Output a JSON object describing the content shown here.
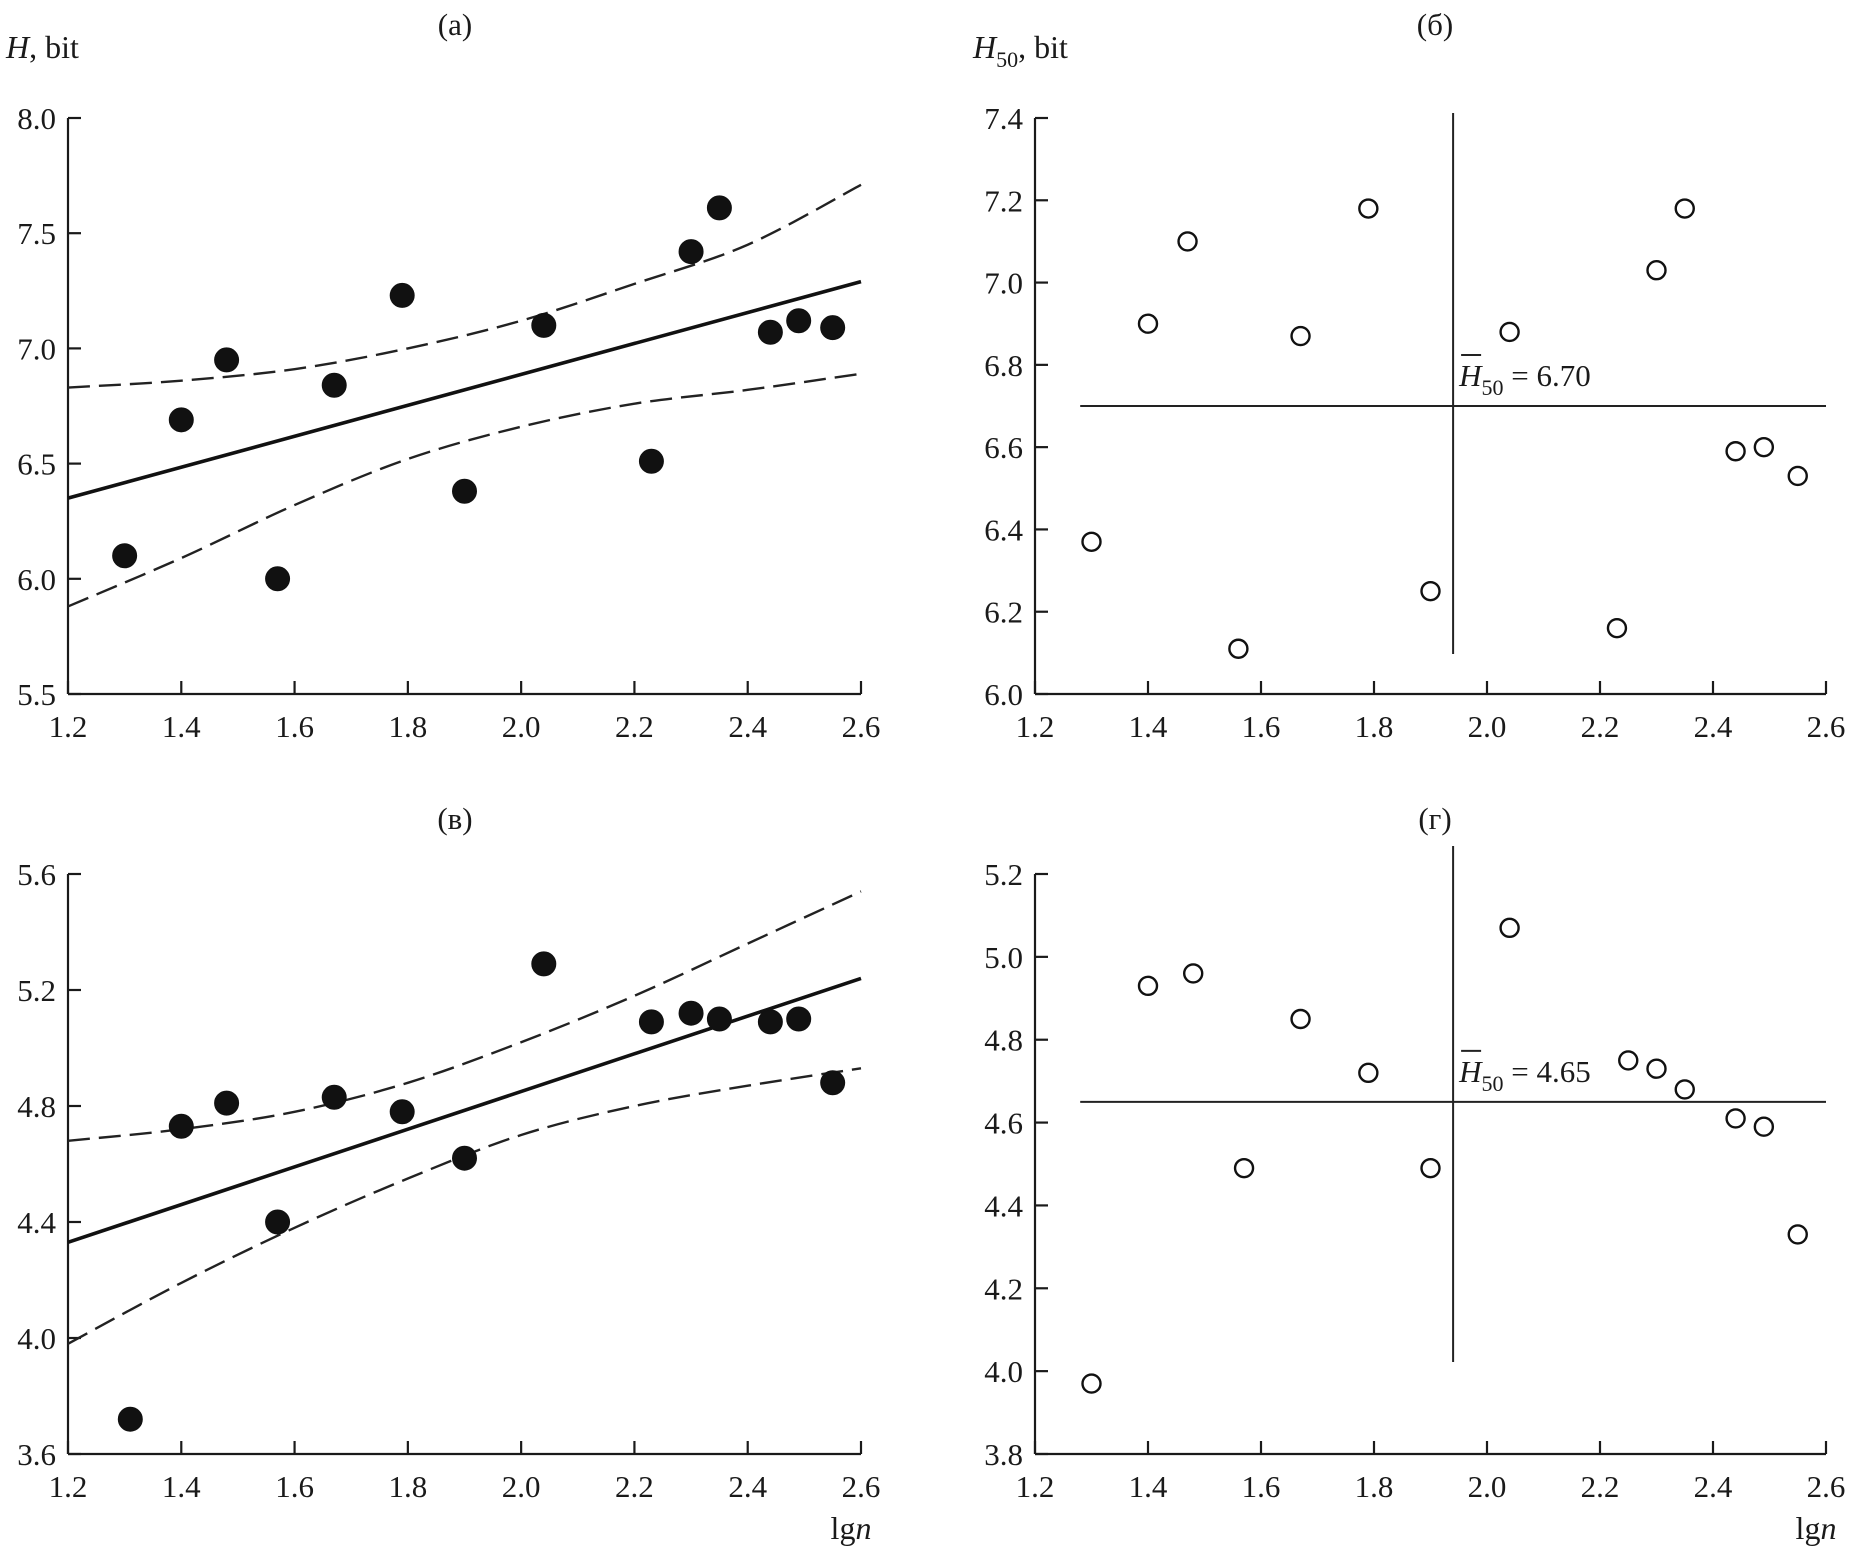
{
  "chart_data": [
    {
      "panel": "a",
      "title": "(а)",
      "type": "scatter",
      "ylabel": "H, bit",
      "xlabel": "",
      "xlim": [
        1.2,
        2.6
      ],
      "ylim": [
        5.5,
        8.0
      ],
      "xticks": [
        "1.2",
        "1.4",
        "1.6",
        "1.8",
        "2.0",
        "2.2",
        "2.4",
        "2.6"
      ],
      "yticks": [
        "5.5",
        "6.0",
        "6.5",
        "7.0",
        "7.5",
        "8.0"
      ],
      "marker": "filled",
      "points": [
        {
          "x": 1.3,
          "y": 6.1
        },
        {
          "x": 1.4,
          "y": 6.69
        },
        {
          "x": 1.48,
          "y": 6.95
        },
        {
          "x": 1.57,
          "y": 6.0
        },
        {
          "x": 1.67,
          "y": 6.84
        },
        {
          "x": 1.79,
          "y": 7.23
        },
        {
          "x": 1.9,
          "y": 6.38
        },
        {
          "x": 2.04,
          "y": 7.1
        },
        {
          "x": 2.23,
          "y": 6.51
        },
        {
          "x": 2.3,
          "y": 7.42
        },
        {
          "x": 2.35,
          "y": 7.61
        },
        {
          "x": 2.44,
          "y": 7.07
        },
        {
          "x": 2.49,
          "y": 7.12
        },
        {
          "x": 2.55,
          "y": 7.09
        }
      ],
      "fit_line": [
        {
          "x": 1.2,
          "y": 6.35
        },
        {
          "x": 2.6,
          "y": 7.29
        }
      ],
      "confidence_band": {
        "upper": [
          {
            "x": 1.2,
            "y": 6.83
          },
          {
            "x": 1.4,
            "y": 6.86
          },
          {
            "x": 1.6,
            "y": 6.91
          },
          {
            "x": 1.8,
            "y": 7.0
          },
          {
            "x": 2.0,
            "y": 7.12
          },
          {
            "x": 2.2,
            "y": 7.28
          },
          {
            "x": 2.4,
            "y": 7.45
          },
          {
            "x": 2.6,
            "y": 7.71
          }
        ],
        "lower": [
          {
            "x": 1.2,
            "y": 5.88
          },
          {
            "x": 1.4,
            "y": 6.09
          },
          {
            "x": 1.6,
            "y": 6.32
          },
          {
            "x": 1.8,
            "y": 6.52
          },
          {
            "x": 2.0,
            "y": 6.66
          },
          {
            "x": 2.2,
            "y": 6.76
          },
          {
            "x": 2.4,
            "y": 6.82
          },
          {
            "x": 2.6,
            "y": 6.89
          }
        ]
      }
    },
    {
      "panel": "b",
      "title": "(б)",
      "type": "scatter",
      "ylabel_main": "H",
      "ylabel_sub": "50",
      "ylabel_rest": ", bit",
      "xlabel": "",
      "xlim": [
        1.2,
        2.6
      ],
      "ylim": [
        6.0,
        7.4
      ],
      "xticks": [
        "1.2",
        "1.4",
        "1.6",
        "1.8",
        "2.0",
        "2.2",
        "2.4",
        "2.6"
      ],
      "yticks": [
        "6.0",
        "6.2",
        "6.4",
        "6.6",
        "6.8",
        "7.0",
        "7.2",
        "7.4"
      ],
      "marker": "open",
      "points": [
        {
          "x": 1.3,
          "y": 6.37
        },
        {
          "x": 1.4,
          "y": 6.9
        },
        {
          "x": 1.47,
          "y": 7.1
        },
        {
          "x": 1.56,
          "y": 6.11
        },
        {
          "x": 1.67,
          "y": 6.87
        },
        {
          "x": 1.79,
          "y": 7.18
        },
        {
          "x": 1.9,
          "y": 6.25
        },
        {
          "x": 2.04,
          "y": 6.88
        },
        {
          "x": 2.23,
          "y": 6.16
        },
        {
          "x": 2.3,
          "y": 7.03
        },
        {
          "x": 2.35,
          "y": 7.18
        },
        {
          "x": 2.44,
          "y": 6.59
        },
        {
          "x": 2.49,
          "y": 6.6
        },
        {
          "x": 2.55,
          "y": 6.53
        }
      ],
      "mean_value": 6.7,
      "mean_x": 1.94,
      "mean_label": {
        "main": "H",
        "sub": "50",
        "rest": " = 6.70"
      }
    },
    {
      "panel": "c",
      "title": "(в)",
      "type": "scatter",
      "ylabel": "",
      "xlabel": "lgn",
      "xlim": [
        1.2,
        2.6
      ],
      "ylim": [
        3.6,
        5.6
      ],
      "xticks": [
        "1.2",
        "1.4",
        "1.6",
        "1.8",
        "2.0",
        "2.2",
        "2.4",
        "2.6"
      ],
      "yticks": [
        "3.6",
        "4.0",
        "4.4",
        "4.8",
        "5.2",
        "5.6"
      ],
      "marker": "filled",
      "points": [
        {
          "x": 1.31,
          "y": 3.72
        },
        {
          "x": 1.4,
          "y": 4.73
        },
        {
          "x": 1.48,
          "y": 4.81
        },
        {
          "x": 1.57,
          "y": 4.4
        },
        {
          "x": 1.67,
          "y": 4.83
        },
        {
          "x": 1.79,
          "y": 4.78
        },
        {
          "x": 1.9,
          "y": 4.62
        },
        {
          "x": 2.04,
          "y": 5.29
        },
        {
          "x": 2.23,
          "y": 5.09
        },
        {
          "x": 2.3,
          "y": 5.12
        },
        {
          "x": 2.35,
          "y": 5.1
        },
        {
          "x": 2.44,
          "y": 5.09
        },
        {
          "x": 2.49,
          "y": 5.1
        },
        {
          "x": 2.55,
          "y": 4.88
        }
      ],
      "fit_line": [
        {
          "x": 1.2,
          "y": 4.33
        },
        {
          "x": 2.6,
          "y": 5.24
        }
      ],
      "confidence_band": {
        "upper": [
          {
            "x": 1.2,
            "y": 4.68
          },
          {
            "x": 1.4,
            "y": 4.72
          },
          {
            "x": 1.6,
            "y": 4.78
          },
          {
            "x": 1.8,
            "y": 4.88
          },
          {
            "x": 2.0,
            "y": 5.02
          },
          {
            "x": 2.2,
            "y": 5.18
          },
          {
            "x": 2.4,
            "y": 5.36
          },
          {
            "x": 2.6,
            "y": 5.54
          }
        ],
        "lower": [
          {
            "x": 1.2,
            "y": 3.98
          },
          {
            "x": 1.4,
            "y": 4.19
          },
          {
            "x": 1.6,
            "y": 4.38
          },
          {
            "x": 1.8,
            "y": 4.55
          },
          {
            "x": 2.0,
            "y": 4.7
          },
          {
            "x": 2.2,
            "y": 4.8
          },
          {
            "x": 2.4,
            "y": 4.87
          },
          {
            "x": 2.6,
            "y": 4.93
          }
        ]
      }
    },
    {
      "panel": "d",
      "title": "(г)",
      "type": "scatter",
      "ylabel": "",
      "xlabel": "lgn",
      "xlim": [
        1.2,
        2.6
      ],
      "ylim": [
        3.8,
        5.2
      ],
      "xticks": [
        "1.2",
        "1.4",
        "1.6",
        "1.8",
        "2.0",
        "2.2",
        "2.4",
        "2.6"
      ],
      "yticks": [
        "3.8",
        "4.0",
        "4.2",
        "4.4",
        "4.6",
        "4.8",
        "5.0",
        "5.2"
      ],
      "marker": "open",
      "points": [
        {
          "x": 1.3,
          "y": 3.97
        },
        {
          "x": 1.4,
          "y": 4.93
        },
        {
          "x": 1.48,
          "y": 4.96
        },
        {
          "x": 1.57,
          "y": 4.49
        },
        {
          "x": 1.67,
          "y": 4.85
        },
        {
          "x": 1.79,
          "y": 4.72
        },
        {
          "x": 1.9,
          "y": 4.49
        },
        {
          "x": 2.04,
          "y": 5.07
        },
        {
          "x": 2.25,
          "y": 4.75
        },
        {
          "x": 2.3,
          "y": 4.73
        },
        {
          "x": 2.35,
          "y": 4.68
        },
        {
          "x": 2.44,
          "y": 4.61
        },
        {
          "x": 2.49,
          "y": 4.59
        },
        {
          "x": 2.55,
          "y": 4.33
        }
      ],
      "mean_value": 4.65,
      "mean_x": 1.94,
      "mean_label": {
        "main": "H",
        "sub": "50",
        "rest": " = 4.65"
      }
    }
  ]
}
